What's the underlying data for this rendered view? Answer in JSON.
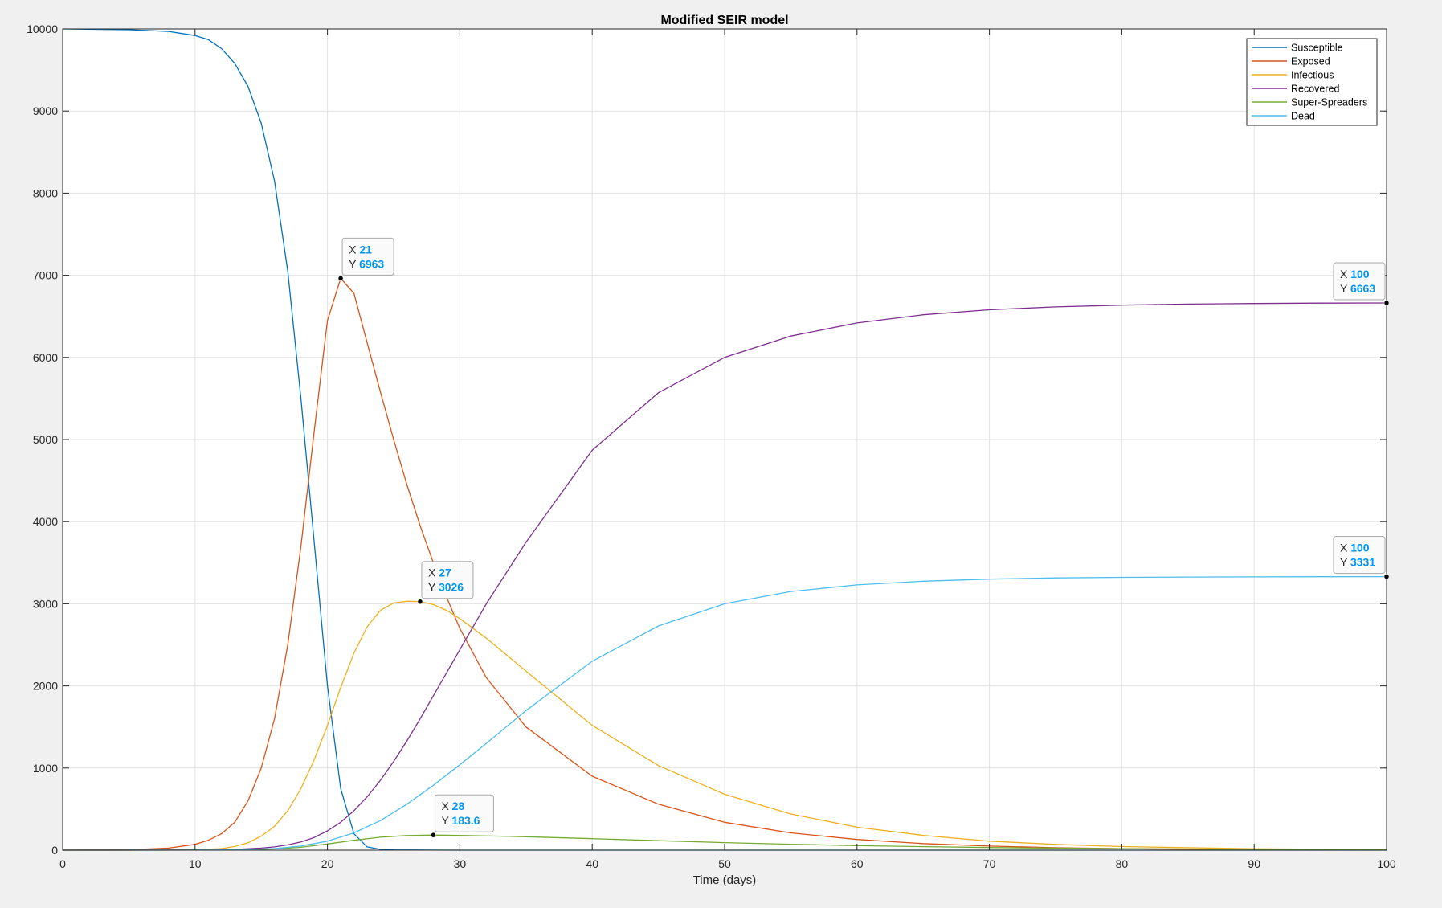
{
  "chart_data": {
    "type": "line",
    "title": "Modified SEIR model",
    "xlabel": "Time (days)",
    "ylabel": "",
    "xlim": [
      0,
      100
    ],
    "ylim": [
      0,
      10000
    ],
    "grid": true,
    "legend_position": "top-right",
    "xticks": [
      0,
      10,
      20,
      30,
      40,
      50,
      60,
      70,
      80,
      90,
      100
    ],
    "yticks": [
      0,
      1000,
      2000,
      3000,
      4000,
      5000,
      6000,
      7000,
      8000,
      9000,
      10000
    ],
    "series": [
      {
        "name": "Susceptible",
        "color": "#0072bd",
        "x": [
          0,
          5,
          8,
          10,
          11,
          12,
          13,
          14,
          15,
          16,
          17,
          18,
          19,
          20,
          21,
          22,
          23,
          24,
          25,
          30,
          100
        ],
        "y": [
          10000,
          9990,
          9970,
          9920,
          9870,
          9760,
          9580,
          9300,
          8850,
          8150,
          7050,
          5500,
          3750,
          2000,
          750,
          200,
          40,
          10,
          3,
          0,
          0
        ]
      },
      {
        "name": "Exposed",
        "color": "#d95319",
        "x": [
          0,
          5,
          8,
          10,
          11,
          12,
          13,
          14,
          15,
          16,
          17,
          18,
          19,
          20,
          21,
          22,
          23,
          24,
          25,
          26,
          27,
          28,
          29,
          30,
          32,
          35,
          40,
          45,
          50,
          55,
          60,
          65,
          70,
          75,
          80,
          90,
          100
        ],
        "y": [
          0,
          5,
          25,
          70,
          120,
          200,
          340,
          600,
          1000,
          1600,
          2500,
          3700,
          5100,
          6450,
          6963,
          6780,
          6180,
          5580,
          5000,
          4450,
          3950,
          3500,
          3080,
          2700,
          2100,
          1500,
          900,
          560,
          340,
          210,
          130,
          80,
          50,
          30,
          18,
          7,
          3
        ]
      },
      {
        "name": "Infectious",
        "color": "#edb120",
        "x": [
          0,
          5,
          10,
          12,
          13,
          14,
          15,
          16,
          17,
          18,
          19,
          20,
          21,
          22,
          23,
          24,
          25,
          26,
          27,
          28,
          29,
          30,
          32,
          35,
          40,
          45,
          50,
          55,
          60,
          65,
          70,
          75,
          80,
          90,
          100
        ],
        "y": [
          0,
          0,
          5,
          20,
          45,
          90,
          170,
          290,
          480,
          750,
          1100,
          1520,
          1980,
          2400,
          2720,
          2920,
          3010,
          3030,
          3026,
          2990,
          2920,
          2820,
          2580,
          2180,
          1520,
          1030,
          680,
          440,
          280,
          180,
          110,
          70,
          44,
          17,
          7
        ]
      },
      {
        "name": "Recovered",
        "color": "#7e2f8e",
        "x": [
          0,
          10,
          13,
          15,
          16,
          17,
          18,
          19,
          20,
          21,
          22,
          23,
          24,
          25,
          26,
          27,
          28,
          30,
          32,
          35,
          40,
          45,
          50,
          55,
          60,
          65,
          70,
          75,
          80,
          85,
          90,
          95,
          100
        ],
        "y": [
          0,
          2,
          10,
          25,
          40,
          65,
          100,
          155,
          235,
          340,
          480,
          650,
          850,
          1080,
          1330,
          1600,
          1880,
          2440,
          3000,
          3750,
          4870,
          5570,
          6000,
          6260,
          6420,
          6520,
          6580,
          6615,
          6637,
          6650,
          6657,
          6661,
          6663
        ]
      },
      {
        "name": "Super-Spreaders",
        "color": "#77ac30",
        "x": [
          0,
          10,
          14,
          16,
          18,
          20,
          22,
          24,
          26,
          28,
          30,
          35,
          40,
          45,
          50,
          55,
          60,
          70,
          80,
          90,
          100
        ],
        "y": [
          0,
          1,
          5,
          15,
          35,
          75,
          120,
          158,
          178,
          183.6,
          180,
          163,
          140,
          115,
          92,
          72,
          55,
          32,
          18,
          10,
          5
        ]
      },
      {
        "name": "Dead",
        "color": "#4dbeee",
        "x": [
          0,
          10,
          14,
          16,
          18,
          20,
          22,
          24,
          26,
          28,
          30,
          32,
          35,
          40,
          45,
          50,
          55,
          60,
          65,
          70,
          75,
          80,
          85,
          90,
          95,
          100
        ],
        "y": [
          0,
          1,
          8,
          20,
          50,
          110,
          210,
          360,
          560,
          790,
          1040,
          1300,
          1700,
          2300,
          2730,
          3000,
          3150,
          3230,
          3275,
          3300,
          3315,
          3322,
          3326,
          3328,
          3330,
          3331
        ]
      }
    ],
    "datatips": [
      {
        "series": "Exposed",
        "x": 21,
        "y": 6963,
        "x_text": "21",
        "y_text": "6963",
        "side": "upper-right"
      },
      {
        "series": "Infectious",
        "x": 27,
        "y": 3026,
        "x_text": "27",
        "y_text": "3026",
        "side": "upper-right"
      },
      {
        "series": "Super-Spreaders",
        "x": 28,
        "y": 183.6,
        "x_text": "28",
        "y_text": "183.6",
        "side": "upper-right"
      },
      {
        "series": "Recovered",
        "x": 100,
        "y": 6663,
        "x_text": "100",
        "y_text": "6663",
        "side": "upper-left"
      },
      {
        "series": "Dead",
        "x": 100,
        "y": 3331,
        "x_text": "100",
        "y_text": "3331",
        "side": "upper-left"
      }
    ],
    "datatip_labels": {
      "x": "X",
      "y": "Y"
    }
  },
  "colors": {
    "figure_background": "#f0f0f0",
    "axes_background": "#ffffff",
    "grid": "#e3e3e3",
    "axis": "#262626",
    "datatip_value": "#0096f0"
  }
}
